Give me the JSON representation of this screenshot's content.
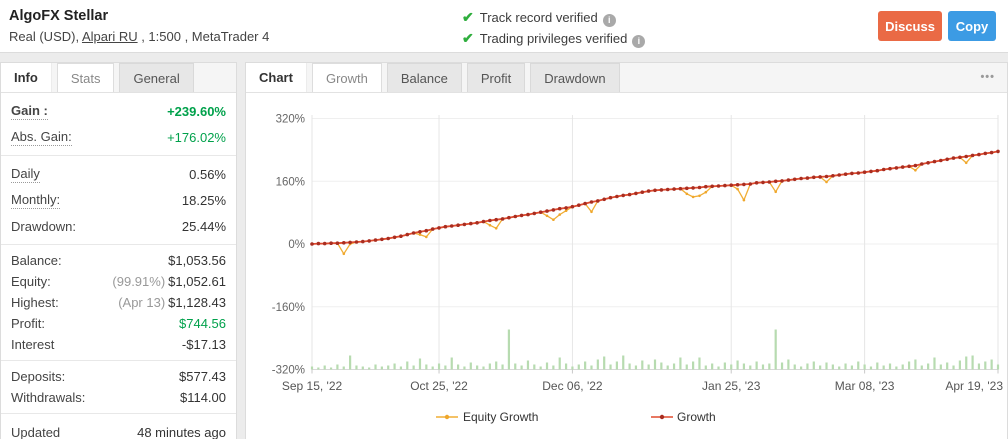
{
  "header": {
    "title": "AlgoFX Stellar",
    "subtitle_prefix": "Real (USD), ",
    "broker_link": "Alpari RU",
    "subtitle_suffix": " , 1:500 , MetaTrader 4",
    "verified": [
      "Track record verified",
      "Trading privileges verified"
    ],
    "discuss_label": "Discuss",
    "copy_label": "Copy"
  },
  "colors": {
    "discuss_button": "#EA6A45",
    "copy_button": "#3C9BE4",
    "positive_green": "#00A14B",
    "growth_line": "#E04B2E",
    "growth_dot": "#A92D20",
    "equity_line": "#F1AE35",
    "equity_dot": "#EFA72C",
    "volume_bar": "#B7DBB0"
  },
  "sidebar": {
    "tabs": [
      {
        "label": "Info",
        "state": "active"
      },
      {
        "label": "Stats",
        "state": "boxed"
      },
      {
        "label": "General",
        "state": "gray"
      }
    ],
    "groups": [
      {
        "compact": false,
        "rows": [
          {
            "label": "Gain :",
            "dotted": true,
            "bold": true,
            "value": "+239.60%",
            "green": true
          },
          {
            "label": "Abs. Gain:",
            "dotted": true,
            "value": "+176.02%",
            "green": true
          }
        ]
      },
      {
        "compact": false,
        "rows": [
          {
            "label": "Daily",
            "dotted": true,
            "value": "0.56%"
          },
          {
            "label": "Monthly:",
            "dotted": true,
            "value": "18.25%"
          },
          {
            "label": "Drawdown:",
            "value": "25.44%"
          }
        ]
      },
      {
        "compact": true,
        "rows": [
          {
            "label": "Balance:",
            "value": "$1,053.56"
          },
          {
            "label": "Equity:",
            "prefix": "(99.91%)",
            "value": "$1,052.61"
          },
          {
            "label": "Highest:",
            "prefix": "(Apr 13)",
            "value": "$1,128.43"
          },
          {
            "label": "Profit:",
            "value": "$744.56",
            "green": true
          },
          {
            "label": "Interest",
            "value": "-$17.13"
          }
        ]
      },
      {
        "compact": true,
        "rows": [
          {
            "label": "Deposits:",
            "value": "$577.43"
          },
          {
            "label": "Withdrawals:",
            "value": "$114.00"
          }
        ]
      },
      {
        "compact": false,
        "rows": [
          {
            "label": "Updated",
            "value": "48 minutes ago"
          }
        ]
      }
    ]
  },
  "chart_panel": {
    "tabs": [
      {
        "label": "Chart",
        "state": "active"
      },
      {
        "label": "Growth",
        "state": "boxed"
      },
      {
        "label": "Balance",
        "state": "gray"
      },
      {
        "label": "Profit",
        "state": "gray"
      },
      {
        "label": "Drawdown",
        "state": "gray"
      }
    ],
    "menu_icon": "•••"
  },
  "chart_data": {
    "type": "line",
    "title": "Growth",
    "grid": true,
    "legend_position": "bottom",
    "x_axis": {
      "total_days": 216,
      "step_days": 2,
      "tick_days": [
        0,
        40,
        82,
        132,
        174,
        216
      ],
      "tick_labels": [
        "Sep 15, '22",
        "Oct 25, '22",
        "Dec 06, '22",
        "Jan 25, '23",
        "Mar 08, '23",
        "Apr 19, '23"
      ]
    },
    "y_axis": {
      "unit": "%",
      "ticks": [
        320,
        160,
        0,
        -160,
        -320
      ],
      "lim": [
        -320,
        320
      ]
    },
    "series": [
      {
        "name": "Equity Growth",
        "color": "#F1AE35",
        "dot_color": "#EFA72C",
        "values": [
          0,
          1,
          1,
          2,
          2,
          -25,
          0,
          5,
          6,
          8,
          10,
          12,
          14,
          17,
          20,
          24,
          28,
          24,
          18,
          38,
          41,
          44,
          46,
          48,
          50,
          52,
          54,
          57,
          48,
          40,
          64,
          67,
          70,
          73,
          75,
          78,
          81,
          72,
          62,
          75,
          85,
          95,
          99,
          103,
          82,
          110,
          114,
          118,
          121,
          124,
          126,
          129,
          132,
          135,
          137,
          138,
          139,
          140,
          141,
          128,
          120,
          123,
          132,
          147,
          148,
          149,
          150,
          140,
          112,
          153,
          156,
          157,
          158,
          133,
          161,
          163,
          165,
          167,
          168,
          170,
          171,
          158,
          174,
          176,
          178,
          180,
          181,
          183,
          185,
          187,
          190,
          192,
          194,
          196,
          198,
          188,
          204,
          207,
          210,
          213,
          216,
          219,
          221,
          207,
          226,
          228,
          231,
          233,
          236
        ]
      },
      {
        "name": "Growth",
        "color": "#E04B2E",
        "dot_color": "#A92D20",
        "values": [
          0,
          1,
          1,
          2,
          2,
          3,
          4,
          5,
          6,
          8,
          10,
          12,
          14,
          17,
          20,
          24,
          28,
          31,
          34,
          38,
          41,
          44,
          46,
          48,
          50,
          52,
          54,
          57,
          60,
          62,
          64,
          67,
          70,
          73,
          75,
          78,
          81,
          84,
          87,
          90,
          92,
          95,
          99,
          103,
          107,
          110,
          114,
          118,
          121,
          124,
          126,
          129,
          132,
          135,
          137,
          138,
          139,
          140,
          141,
          142,
          143,
          144,
          146,
          147,
          148,
          149,
          150,
          151,
          152,
          153,
          156,
          157,
          158,
          160,
          161,
          163,
          165,
          167,
          168,
          170,
          171,
          172,
          174,
          176,
          178,
          180,
          181,
          183,
          185,
          187,
          190,
          192,
          194,
          196,
          198,
          200,
          204,
          207,
          210,
          213,
          216,
          219,
          221,
          223,
          226,
          228,
          231,
          233,
          236
        ]
      }
    ],
    "volume_bars": {
      "color": "#B7DBB0",
      "values": [
        3,
        2,
        4,
        2,
        5,
        3,
        14,
        4,
        3,
        2,
        5,
        3,
        4,
        6,
        3,
        8,
        4,
        11,
        5,
        3,
        6,
        4,
        12,
        5,
        3,
        7,
        4,
        3,
        6,
        8,
        5,
        40,
        6,
        4,
        9,
        5,
        3,
        7,
        4,
        12,
        6,
        3,
        5,
        8,
        4,
        10,
        13,
        5,
        8,
        14,
        6,
        4,
        9,
        5,
        10,
        7,
        4,
        6,
        12,
        5,
        8,
        12,
        4,
        6,
        3,
        7,
        5,
        9,
        6,
        4,
        8,
        5,
        6,
        40,
        7,
        10,
        5,
        3,
        6,
        8,
        4,
        7,
        5,
        3,
        6,
        4,
        8,
        5,
        3,
        7,
        4,
        6,
        3,
        5,
        8,
        10,
        4,
        6,
        12,
        5,
        7,
        4,
        9,
        13,
        14,
        6,
        8,
        10,
        5
      ]
    }
  }
}
